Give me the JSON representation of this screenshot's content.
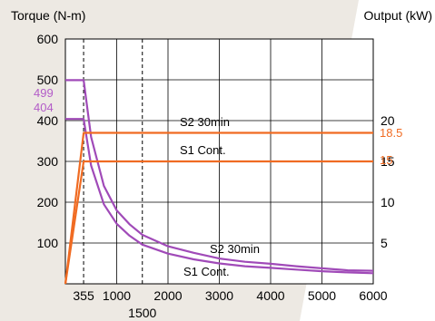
{
  "chart_data": {
    "type": "line",
    "y_left_label": "Torque (N-m)",
    "y_right_label": "Output (kW)",
    "y_left_ticks": [
      "600",
      "500",
      "400",
      "300",
      "200",
      "100"
    ],
    "y_right_ticks": [
      "20",
      "15",
      "10",
      "5"
    ],
    "x_ticks": [
      "355",
      "1000",
      "2000",
      "3000",
      "4000",
      "5000",
      "6000"
    ],
    "x_extra_tick": "1500",
    "xlim": [
      0,
      6000
    ],
    "ylim_left": [
      0,
      600
    ],
    "ylim_right": [
      0,
      30
    ],
    "grid": true,
    "colors": {
      "torque": "#a04ab8",
      "output": "#f06b22",
      "annot_torque": "#b35cc8",
      "annot_output": "#f06b22",
      "background_gray": "#ede9e3"
    },
    "annotations": {
      "torque_peak": "499",
      "torque_cont": "404",
      "output_s2": "18.5",
      "output_s1": "15",
      "label_s2_upper": "S2 30min",
      "label_s1_upper": "S1 Cont.",
      "label_s2_lower": "S2 30min",
      "label_s1_lower": "S1 Cont."
    },
    "series": [
      {
        "name": "S2 30min",
        "axis": "left",
        "x": [
          0,
          355,
          500,
          750,
          1000,
          1250,
          1500,
          2000,
          2500,
          3000,
          3500,
          4000,
          4500,
          5000,
          5500,
          6000
        ],
        "y": [
          499,
          499,
          360,
          240,
          180,
          146,
          120,
          92,
          76,
          62,
          54,
          49,
          43,
          38,
          33,
          32
        ]
      },
      {
        "name": "S1 Cont.",
        "axis": "left",
        "x": [
          0,
          355,
          500,
          750,
          1000,
          1250,
          1500,
          2000,
          2500,
          3000,
          3500,
          4000,
          4500,
          5000,
          5500,
          6000
        ],
        "y": [
          404,
          404,
          290,
          195,
          147,
          118,
          96,
          74,
          60,
          50,
          43,
          39,
          35,
          31,
          28,
          26
        ]
      },
      {
        "name": "S2 30min",
        "axis": "right",
        "x": [
          0,
          355,
          6000
        ],
        "y": [
          0,
          18.5,
          18.5
        ]
      },
      {
        "name": "S1 Cont.",
        "axis": "right",
        "x": [
          0,
          355,
          6000
        ],
        "y": [
          0,
          15,
          15
        ]
      }
    ]
  }
}
